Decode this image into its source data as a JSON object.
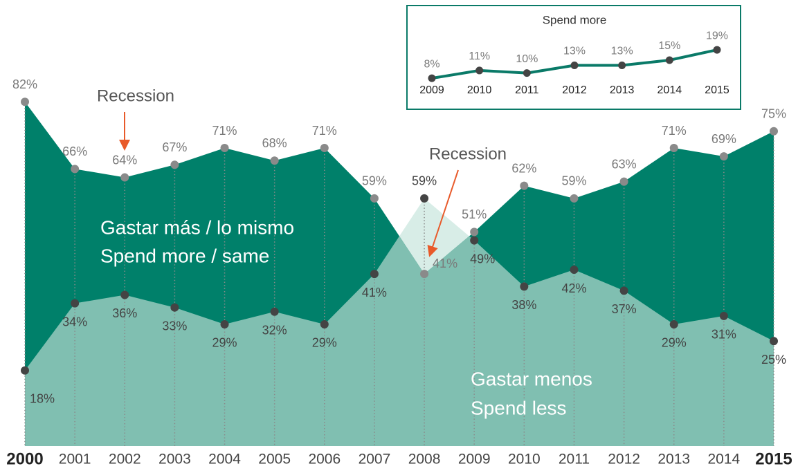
{
  "chart_data": [
    {
      "type": "area",
      "categories": [
        "2000",
        "2001",
        "2002",
        "2003",
        "2004",
        "2005",
        "2006",
        "2007",
        "2008",
        "2009",
        "2010",
        "2011",
        "2012",
        "2013",
        "2014",
        "2015"
      ],
      "series": [
        {
          "name": "Spend more / same",
          "name_es": "Gastar más / lo mismo",
          "color": "#00806a",
          "values": [
            82,
            66,
            64,
            67,
            71,
            68,
            71,
            59,
            41,
            51,
            62,
            59,
            63,
            71,
            69,
            75
          ],
          "value_labels": [
            "82%",
            "66%",
            "64%",
            "67%",
            "71%",
            "68%",
            "71%",
            "59%",
            "41%",
            "51%",
            "62%",
            "59%",
            "63%",
            "71%",
            "69%",
            "75%"
          ]
        },
        {
          "name": "Spend less",
          "name_es": "Gastar menos",
          "color": "#80bfb1",
          "values": [
            18,
            34,
            36,
            33,
            29,
            32,
            29,
            41,
            59,
            49,
            38,
            42,
            37,
            29,
            31,
            25
          ],
          "value_labels": [
            "18%",
            "34%",
            "36%",
            "33%",
            "29%",
            "32%",
            "29%",
            "41%",
            "59%",
            "49%",
            "38%",
            "42%",
            "37%",
            "29%",
            "31%",
            "25%"
          ]
        }
      ],
      "ylim": [
        0,
        100
      ],
      "annotations": [
        "Recession",
        "Recession"
      ]
    },
    {
      "type": "line",
      "title": "Spend more",
      "categories": [
        "2009",
        "2010",
        "2011",
        "2012",
        "2013",
        "2014",
        "2015"
      ],
      "values": [
        8,
        11,
        10,
        13,
        13,
        15,
        19
      ],
      "value_labels": [
        "8%",
        "11%",
        "10%",
        "13%",
        "13%",
        "15%",
        "19%"
      ],
      "color": "#0a7a68",
      "ylim": [
        0,
        30
      ]
    }
  ]
}
